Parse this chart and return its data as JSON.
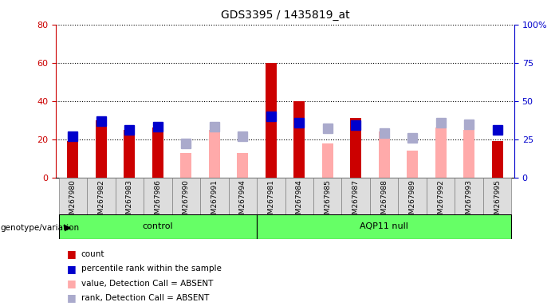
{
  "title": "GDS3395 / 1435819_at",
  "samples": [
    "GSM267980",
    "GSM267982",
    "GSM267983",
    "GSM267986",
    "GSM267990",
    "GSM267991",
    "GSM267994",
    "GSM267981",
    "GSM267984",
    "GSM267985",
    "GSM267987",
    "GSM267988",
    "GSM267989",
    "GSM267992",
    "GSM267993",
    "GSM267995"
  ],
  "groups": [
    "control",
    "control",
    "control",
    "control",
    "control",
    "control",
    "control",
    "AQP11 null",
    "AQP11 null",
    "AQP11 null",
    "AQP11 null",
    "AQP11 null",
    "AQP11 null",
    "AQP11 null",
    "AQP11 null",
    "AQP11 null"
  ],
  "count": [
    19,
    30,
    25,
    26,
    0,
    0,
    0,
    60,
    40,
    0,
    31,
    0,
    0,
    0,
    0,
    19
  ],
  "percentile_rank": [
    27,
    37,
    31,
    33,
    0,
    0,
    0,
    40,
    36,
    0,
    34,
    0,
    0,
    0,
    0,
    31
  ],
  "value_absent": [
    0,
    0,
    0,
    0,
    13,
    25,
    13,
    0,
    0,
    18,
    0,
    24,
    14,
    26,
    25,
    0
  ],
  "rank_absent": [
    0,
    0,
    0,
    0,
    22,
    33,
    27,
    0,
    0,
    32,
    0,
    29,
    26,
    36,
    35,
    0
  ],
  "ylim_left": [
    0,
    80
  ],
  "ylim_right": [
    0,
    100
  ],
  "yticks_left": [
    0,
    20,
    40,
    60,
    80
  ],
  "yticks_right": [
    0,
    25,
    50,
    75,
    100
  ],
  "ytick_labels_right": [
    "0",
    "25",
    "50",
    "75",
    "100%"
  ],
  "color_count": "#cc0000",
  "color_rank": "#0000cc",
  "color_value_absent": "#ffaaaa",
  "color_rank_absent": "#aaaacc",
  "bar_width": 0.4,
  "marker_size": 8,
  "group_color": "#66ff66",
  "group_border": "#000000",
  "bg_color": "#dddddd",
  "legend_items": [
    "count",
    "percentile rank within the sample",
    "value, Detection Call = ABSENT",
    "rank, Detection Call = ABSENT"
  ],
  "n_control": 7,
  "n_aqp11": 9
}
